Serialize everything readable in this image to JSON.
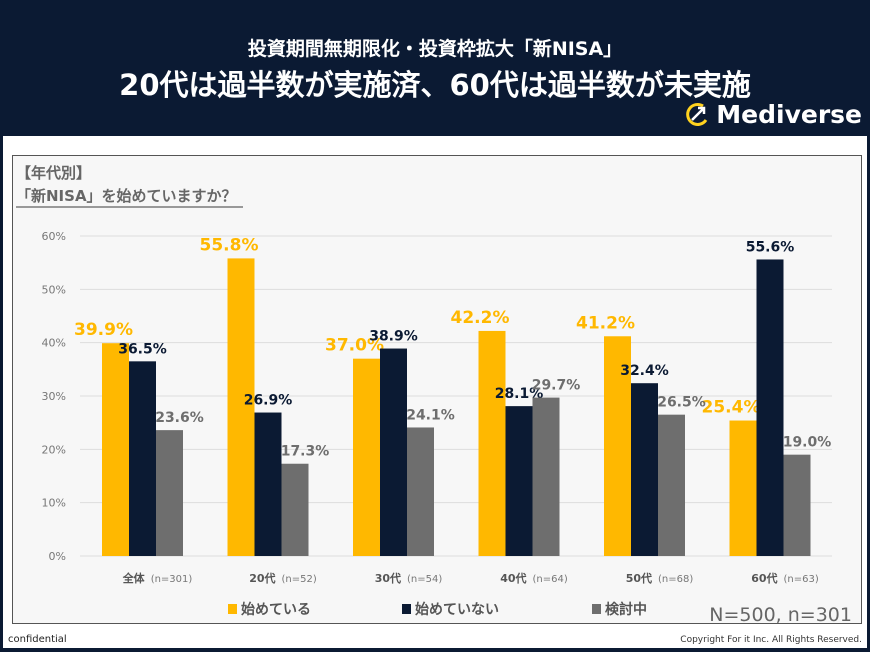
{
  "header": {
    "subtitle": "投資期間無期限化・投資枠拡大「新NISA」",
    "title": "20代は過半数が実施済、60代は過半数が未実施",
    "logo": "Mediverse"
  },
  "panel": {
    "title1": "【年代別】",
    "title2": "「新NISA」を始めていますか？",
    "sample": "N=500, n=301"
  },
  "footer": {
    "left": "confidential",
    "right": "Copyright For it Inc. All Rights Reserved."
  },
  "colors": {
    "yellow": "#ffb800",
    "navy": "#0b1a33",
    "gray": "#6e6e6e"
  },
  "chart_data": {
    "type": "bar",
    "categories": [
      "全体",
      "20代",
      "30代",
      "40代",
      "50代",
      "60代"
    ],
    "category_n": [
      "(n=301)",
      "(n=52)",
      "(n=54)",
      "(n=64)",
      "(n=68)",
      "(n=63)"
    ],
    "ylim": [
      0,
      60
    ],
    "yticks": [
      "0%",
      "10%",
      "20%",
      "30%",
      "40%",
      "50%",
      "60%"
    ],
    "grid": true,
    "legend_position": "bottom",
    "series": [
      {
        "name": "始めている",
        "color": "#ffb800",
        "values": [
          39.9,
          55.8,
          37.0,
          42.2,
          41.2,
          25.4
        ],
        "labels": [
          "39.9%",
          "55.8%",
          "37.0%",
          "42.2%",
          "41.2%",
          "25.4%"
        ]
      },
      {
        "name": "始めていない",
        "color": "#0b1a33",
        "values": [
          36.5,
          26.9,
          38.9,
          28.1,
          32.4,
          55.6
        ],
        "labels": [
          "36.5%",
          "26.9%",
          "38.9%",
          "28.1%",
          "32.4%",
          "55.6%"
        ]
      },
      {
        "name": "検討中",
        "color": "#6e6e6e",
        "values": [
          23.6,
          17.3,
          24.1,
          29.7,
          26.5,
          19.0
        ],
        "labels": [
          "23.6%",
          "17.3%",
          "24.1%",
          "29.7%",
          "26.5%",
          "19.0%"
        ]
      }
    ]
  }
}
